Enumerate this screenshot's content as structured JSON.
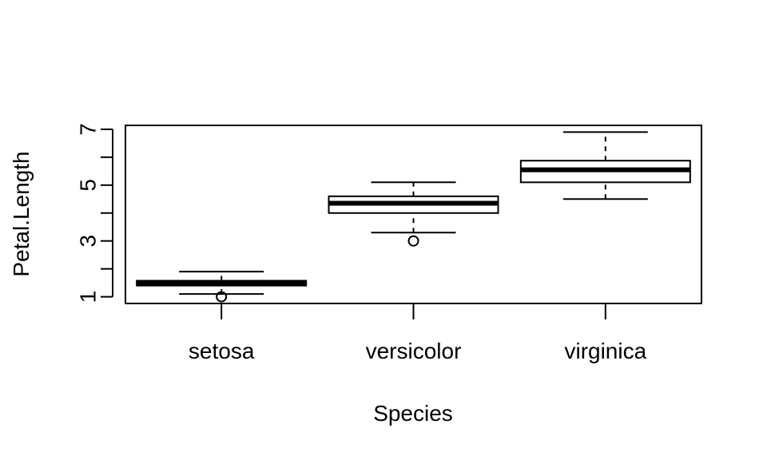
{
  "chart_data": {
    "type": "box",
    "xlabel": "Species",
    "ylabel": "Petal.Length",
    "ylim": [
      0.76,
      7.14
    ],
    "yticks": [
      1,
      2,
      3,
      4,
      5,
      6,
      7
    ],
    "ytick_labels": [
      "1",
      "",
      "3",
      "",
      "5",
      "",
      "7"
    ],
    "categories": [
      "setosa",
      "versicolor",
      "virginica"
    ],
    "boxes": [
      {
        "category": "setosa",
        "whisker_low": 1.1,
        "q1": 1.4,
        "median": 1.5,
        "q3": 1.575,
        "whisker_high": 1.9,
        "outliers": [
          1.0
        ]
      },
      {
        "category": "versicolor",
        "whisker_low": 3.3,
        "q1": 4.0,
        "median": 4.35,
        "q3": 4.6,
        "whisker_high": 5.1,
        "outliers": [
          3.0
        ]
      },
      {
        "category": "virginica",
        "whisker_low": 4.5,
        "q1": 5.1,
        "median": 5.55,
        "q3": 5.875,
        "whisker_high": 6.9,
        "outliers": []
      }
    ]
  }
}
